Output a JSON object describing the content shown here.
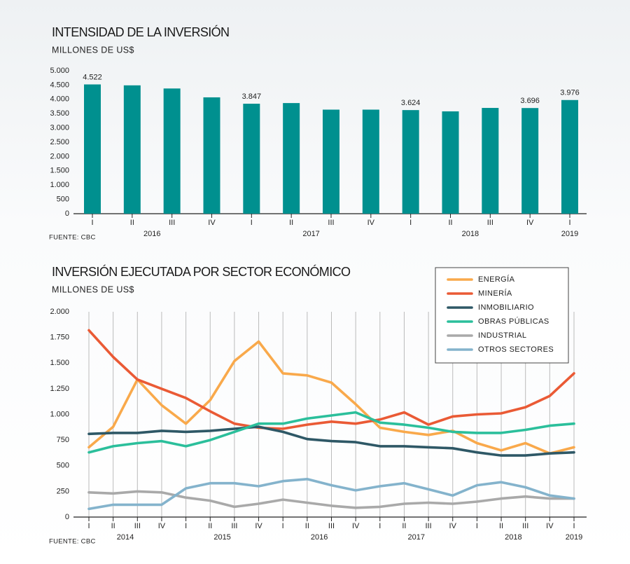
{
  "chart_data": [
    {
      "type": "bar",
      "title": "INTENSIDAD DE LA INVERSIÓN",
      "subtitle": "MILLONES DE US$",
      "source": "FUENTE: CBC",
      "categories": [
        "I",
        "II",
        "III",
        "IV",
        "I",
        "II",
        "III",
        "IV",
        "I",
        "II",
        "III",
        "IV",
        "I"
      ],
      "years": [
        "2016",
        "2017",
        "2018",
        "2019"
      ],
      "values": [
        4522,
        4490,
        4380,
        4070,
        3847,
        3870,
        3640,
        3640,
        3624,
        3580,
        3700,
        3696,
        3976
      ],
      "value_labels": [
        "4.522",
        null,
        null,
        null,
        "3.847",
        null,
        null,
        null,
        "3.624",
        null,
        null,
        "3.696",
        "3.976"
      ],
      "color": "#00908f",
      "ylim": [
        0,
        5000
      ],
      "yticks": [
        0,
        500,
        {
          "value": 1000,
          "label": "1.000"
        },
        {
          "value": 1500,
          "label": "1.500"
        },
        {
          "value": 2000,
          "label": "2.000"
        },
        {
          "value": 2500,
          "label": "2.500"
        },
        {
          "value": 3000,
          "label": "3.000"
        },
        {
          "value": 3500,
          "label": "3.500"
        },
        {
          "value": 4000,
          "label": "4.000"
        },
        {
          "value": 4500,
          "label": "4.500"
        },
        {
          "value": 5000,
          "label": "5.000"
        }
      ],
      "grid": false
    },
    {
      "type": "line",
      "title": "INVERSIÓN EJECUTADA POR SECTOR ECONÓMICO",
      "subtitle": "MILLONES DE US$",
      "source": "FUENTE: CBC",
      "categories": [
        "I",
        "II",
        "III",
        "IV",
        "I",
        "II",
        "III",
        "IV",
        "I",
        "II",
        "III",
        "IV",
        "I",
        "II",
        "III",
        "IV",
        "I",
        "II",
        "III",
        "IV",
        "I"
      ],
      "years": [
        "2014",
        "2015",
        "2016",
        "2017",
        "2018",
        "2019"
      ],
      "series": [
        {
          "name": "ENERGÍA",
          "color": "#f9a94b",
          "values": [
            680,
            880,
            1340,
            1090,
            910,
            1140,
            1520,
            1710,
            1400,
            1380,
            1310,
            1100,
            870,
            830,
            800,
            840,
            720,
            650,
            720,
            620,
            680
          ]
        },
        {
          "name": "MINERÍA",
          "color": "#ea5a35",
          "values": [
            1820,
            1560,
            1340,
            1250,
            1160,
            1030,
            910,
            870,
            860,
            900,
            930,
            910,
            950,
            1020,
            900,
            980,
            1000,
            1010,
            1070,
            1180,
            1400
          ]
        },
        {
          "name": "INMOBILIARIO",
          "color": "#2e5866",
          "values": [
            810,
            820,
            820,
            840,
            830,
            840,
            860,
            880,
            830,
            760,
            740,
            730,
            690,
            690,
            680,
            670,
            630,
            600,
            600,
            620,
            630
          ]
        },
        {
          "name": "OBRAS PÚBLICAS",
          "color": "#2bbf9b",
          "values": [
            630,
            690,
            720,
            740,
            690,
            750,
            830,
            910,
            910,
            960,
            990,
            1020,
            920,
            900,
            870,
            830,
            820,
            820,
            850,
            890,
            910
          ]
        },
        {
          "name": "INDUSTRIAL",
          "color": "#a9a9a9",
          "values": [
            240,
            230,
            250,
            240,
            190,
            160,
            100,
            130,
            170,
            140,
            110,
            90,
            100,
            130,
            140,
            130,
            150,
            180,
            200,
            180,
            180
          ]
        },
        {
          "name": "OTROS SECTORES",
          "color": "#84b3cc",
          "values": [
            80,
            120,
            120,
            120,
            280,
            330,
            330,
            300,
            350,
            370,
            310,
            260,
            300,
            330,
            270,
            210,
            310,
            340,
            290,
            210,
            180
          ]
        }
      ],
      "ylim": [
        0,
        2000
      ],
      "yticks": [
        0,
        250,
        500,
        750,
        {
          "value": 1000,
          "label": "1.000"
        },
        {
          "value": 1250,
          "label": "1.250"
        },
        {
          "value": 1500,
          "label": "1.500"
        },
        {
          "value": 1750,
          "label": "1.750"
        },
        {
          "value": 2000,
          "label": "2.000"
        }
      ],
      "grid": false,
      "vgrid": true,
      "legend": "top-right"
    }
  ]
}
